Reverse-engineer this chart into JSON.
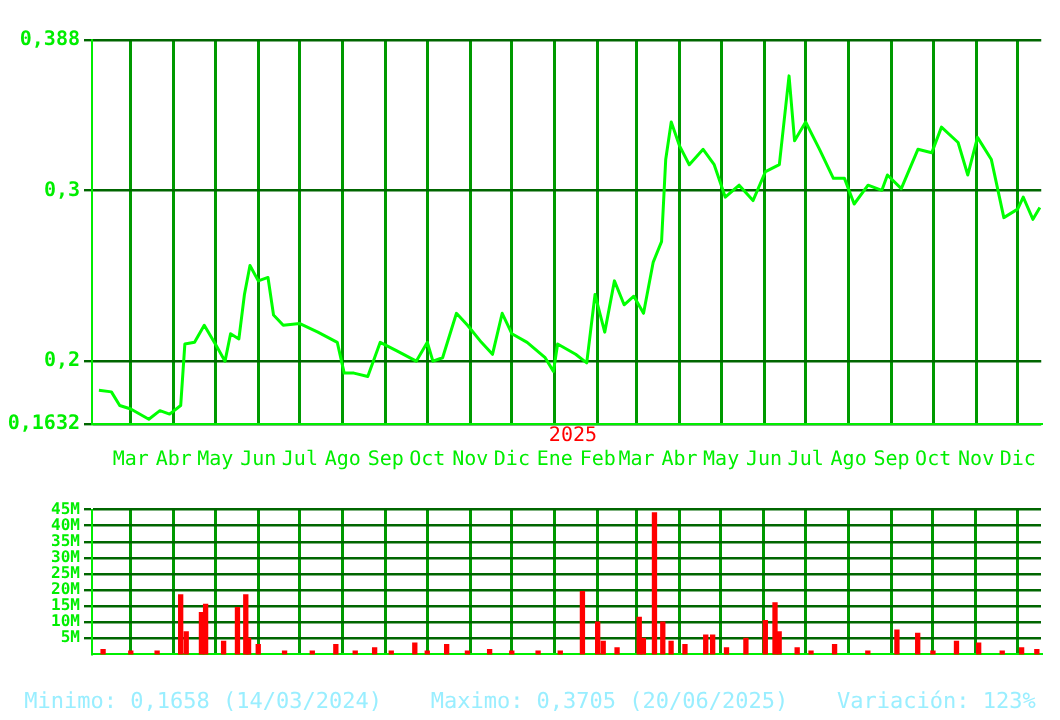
{
  "chart_data": [
    {
      "type": "line",
      "color": "#00ff00",
      "grid": true,
      "marker": "none",
      "line_style": "solid",
      "x": [
        "2024-02-07",
        "2024-02-16",
        "2024-02-22",
        "2024-03-01",
        "2024-03-14",
        "2024-03-22",
        "2024-03-29",
        "2024-04-06",
        "2024-04-09",
        "2024-04-16",
        "2024-04-23",
        "2024-05-01",
        "2024-05-08",
        "2024-05-12",
        "2024-05-18",
        "2024-05-22",
        "2024-05-26",
        "2024-06-01",
        "2024-06-08",
        "2024-06-12",
        "2024-06-19",
        "2024-07-01",
        "2024-07-14",
        "2024-07-28",
        "2024-08-02",
        "2024-08-09",
        "2024-08-19",
        "2024-08-28",
        "2024-09-09",
        "2024-09-23",
        "2024-10-01",
        "2024-10-05",
        "2024-10-12",
        "2024-10-22",
        "2024-10-30",
        "2024-11-09",
        "2024-11-17",
        "2024-11-24",
        "2024-12-01",
        "2024-12-12",
        "2024-12-25",
        "2024-12-31",
        "2025-01-03",
        "2025-01-16",
        "2025-01-24",
        "2025-01-30",
        "2025-02-06",
        "2025-02-13",
        "2025-02-20",
        "2025-02-27",
        "2025-03-06",
        "2025-03-13",
        "2025-03-19",
        "2025-03-22",
        "2025-03-26",
        "2025-04-01",
        "2025-04-08",
        "2025-04-18",
        "2025-04-26",
        "2025-05-04",
        "2025-05-14",
        "2025-05-24",
        "2025-06-02",
        "2025-06-12",
        "2025-06-19",
        "2025-06-23",
        "2025-07-01",
        "2025-07-11",
        "2025-07-21",
        "2025-07-29",
        "2025-08-05",
        "2025-08-15",
        "2025-08-25",
        "2025-08-29",
        "2025-09-08",
        "2025-09-20",
        "2025-09-30",
        "2025-10-07",
        "2025-10-19",
        "2025-10-26",
        "2025-11-02",
        "2025-11-12",
        "2025-11-21",
        "2025-12-01",
        "2025-12-05",
        "2025-12-12",
        "2025-12-17"
      ],
      "values": [
        0.183,
        0.182,
        0.174,
        0.172,
        0.166,
        0.171,
        0.169,
        0.174,
        0.21,
        0.211,
        0.221,
        0.21,
        0.2,
        0.216,
        0.213,
        0.239,
        0.256,
        0.247,
        0.249,
        0.227,
        0.221,
        0.222,
        0.217,
        0.211,
        0.193,
        0.193,
        0.191,
        0.211,
        0.206,
        0.2,
        0.211,
        0.2,
        0.202,
        0.228,
        0.221,
        0.211,
        0.204,
        0.228,
        0.216,
        0.211,
        0.202,
        0.194,
        0.21,
        0.204,
        0.199,
        0.239,
        0.217,
        0.247,
        0.233,
        0.238,
        0.228,
        0.258,
        0.27,
        0.318,
        0.34,
        0.326,
        0.315,
        0.324,
        0.315,
        0.296,
        0.303,
        0.294,
        0.311,
        0.315,
        0.367,
        0.329,
        0.34,
        0.324,
        0.307,
        0.307,
        0.292,
        0.303,
        0.3,
        0.309,
        0.301,
        0.324,
        0.322,
        0.337,
        0.328,
        0.309,
        0.331,
        0.318,
        0.284,
        0.289,
        0.296,
        0.283,
        0.29
      ],
      "xlim": [
        "2024-02-02",
        "2025-12-18"
      ],
      "xticks": [
        {
          "value": "2024-03-01",
          "label": "Mar"
        },
        {
          "value": "2024-04-01",
          "label": "Abr"
        },
        {
          "value": "2024-05-01",
          "label": "May"
        },
        {
          "value": "2024-06-01",
          "label": "Jun"
        },
        {
          "value": "2024-07-01",
          "label": "Jul"
        },
        {
          "value": "2024-08-01",
          "label": "Ago"
        },
        {
          "value": "2024-09-01",
          "label": "Sep"
        },
        {
          "value": "2024-10-01",
          "label": "Oct"
        },
        {
          "value": "2024-11-01",
          "label": "Nov"
        },
        {
          "value": "2024-12-01",
          "label": "Dic"
        },
        {
          "value": "2025-01-01",
          "label": "Ene"
        },
        {
          "value": "2025-02-01",
          "label": "Feb"
        },
        {
          "value": "2025-03-01",
          "label": "Mar"
        },
        {
          "value": "2025-04-01",
          "label": "Abr"
        },
        {
          "value": "2025-05-01",
          "label": "May"
        },
        {
          "value": "2025-06-01",
          "label": "Jun"
        },
        {
          "value": "2025-07-01",
          "label": "Jul"
        },
        {
          "value": "2025-08-01",
          "label": "Ago"
        },
        {
          "value": "2025-09-01",
          "label": "Sep"
        },
        {
          "value": "2025-10-01",
          "label": "Oct"
        },
        {
          "value": "2025-11-01",
          "label": "Nov"
        },
        {
          "value": "2025-12-01",
          "label": "Dic"
        }
      ],
      "ylim": [
        0.1632,
        0.388
      ],
      "yticks": [
        {
          "value": 0.1632,
          "label": "0,1632"
        },
        {
          "value": 0.2,
          "label": "0,2"
        },
        {
          "value": 0.3,
          "label": "0,3"
        },
        {
          "value": 0.388,
          "label": "0,388"
        }
      ],
      "annotations": [
        "2025"
      ]
    },
    {
      "type": "bar",
      "color": "#ff0000",
      "grid": true,
      "tick_labels": "y",
      "x": [
        "2024-02-10",
        "2024-03-01",
        "2024-03-20",
        "2024-04-06",
        "2024-04-10",
        "2024-04-21",
        "2024-04-24",
        "2024-05-07",
        "2024-05-17",
        "2024-05-23",
        "2024-05-25",
        "2024-06-01",
        "2024-06-20",
        "2024-07-10",
        "2024-07-27",
        "2024-08-10",
        "2024-08-24",
        "2024-09-05",
        "2024-09-22",
        "2024-10-01",
        "2024-10-15",
        "2024-10-30",
        "2024-11-15",
        "2024-12-01",
        "2024-12-20",
        "2025-01-05",
        "2025-01-21",
        "2025-02-01",
        "2025-02-05",
        "2025-02-15",
        "2025-03-03",
        "2025-03-06",
        "2025-03-14",
        "2025-03-20",
        "2025-03-26",
        "2025-04-05",
        "2025-04-20",
        "2025-04-25",
        "2025-05-05",
        "2025-05-19",
        "2025-06-02",
        "2025-06-09",
        "2025-06-12",
        "2025-06-25",
        "2025-07-05",
        "2025-07-22",
        "2025-08-15",
        "2025-09-05",
        "2025-09-20",
        "2025-10-01",
        "2025-10-18",
        "2025-11-03",
        "2025-11-20",
        "2025-12-04",
        "2025-12-15"
      ],
      "values": [
        1.5,
        1,
        1,
        18.5,
        7,
        13,
        15.5,
        4,
        14.5,
        18.5,
        5,
        3,
        1,
        1,
        3,
        1,
        2,
        1,
        3.5,
        1,
        3,
        1,
        1.5,
        1,
        1,
        1,
        19.5,
        10,
        4,
        2,
        11.5,
        5,
        44,
        10,
        4,
        3,
        6,
        6,
        2,
        5,
        10.5,
        16,
        7,
        2,
        1,
        3,
        1,
        7.5,
        6.5,
        1,
        4,
        3.5,
        1,
        2,
        1.5
      ],
      "xlim": [
        "2024-02-02",
        "2025-12-18"
      ],
      "xticks": [
        {
          "value": "2024-03-01",
          "label": null
        },
        {
          "value": "2024-04-01",
          "label": null
        },
        {
          "value": "2024-05-01",
          "label": null
        },
        {
          "value": "2024-06-01",
          "label": null
        },
        {
          "value": "2024-07-01",
          "label": null
        },
        {
          "value": "2024-08-01",
          "label": null
        },
        {
          "value": "2024-09-01",
          "label": null
        },
        {
          "value": "2024-10-01",
          "label": null
        },
        {
          "value": "2024-11-01",
          "label": null
        },
        {
          "value": "2024-12-01",
          "label": null
        },
        {
          "value": "2025-01-01",
          "label": null
        },
        {
          "value": "2025-02-01",
          "label": null
        },
        {
          "value": "2025-03-01",
          "label": null
        },
        {
          "value": "2025-04-01",
          "label": null
        },
        {
          "value": "2025-05-01",
          "label": null
        },
        {
          "value": "2025-06-01",
          "label": null
        },
        {
          "value": "2025-07-01",
          "label": null
        },
        {
          "value": "2025-08-01",
          "label": null
        },
        {
          "value": "2025-09-01",
          "label": null
        },
        {
          "value": "2025-10-01",
          "label": null
        },
        {
          "value": "2025-11-01",
          "label": null
        },
        {
          "value": "2025-12-01",
          "label": null
        }
      ],
      "ylim": [
        0,
        45
      ],
      "yticks": [
        {
          "value": 5,
          "label": "5M"
        },
        {
          "value": 10,
          "label": "10M"
        },
        {
          "value": 15,
          "label": "15M"
        },
        {
          "value": 20,
          "label": "20M"
        },
        {
          "value": 25,
          "label": "25M"
        },
        {
          "value": 30,
          "label": "30M"
        },
        {
          "value": 35,
          "label": "35M"
        },
        {
          "value": 40,
          "label": "40M"
        },
        {
          "value": 45,
          "label": "45M"
        }
      ],
      "annotations": [
        "Minimo: 0,1658 (14/03/2024)",
        "Maximo: 0,3705 (20/06/2025)",
        "Variación: 123%"
      ]
    }
  ]
}
